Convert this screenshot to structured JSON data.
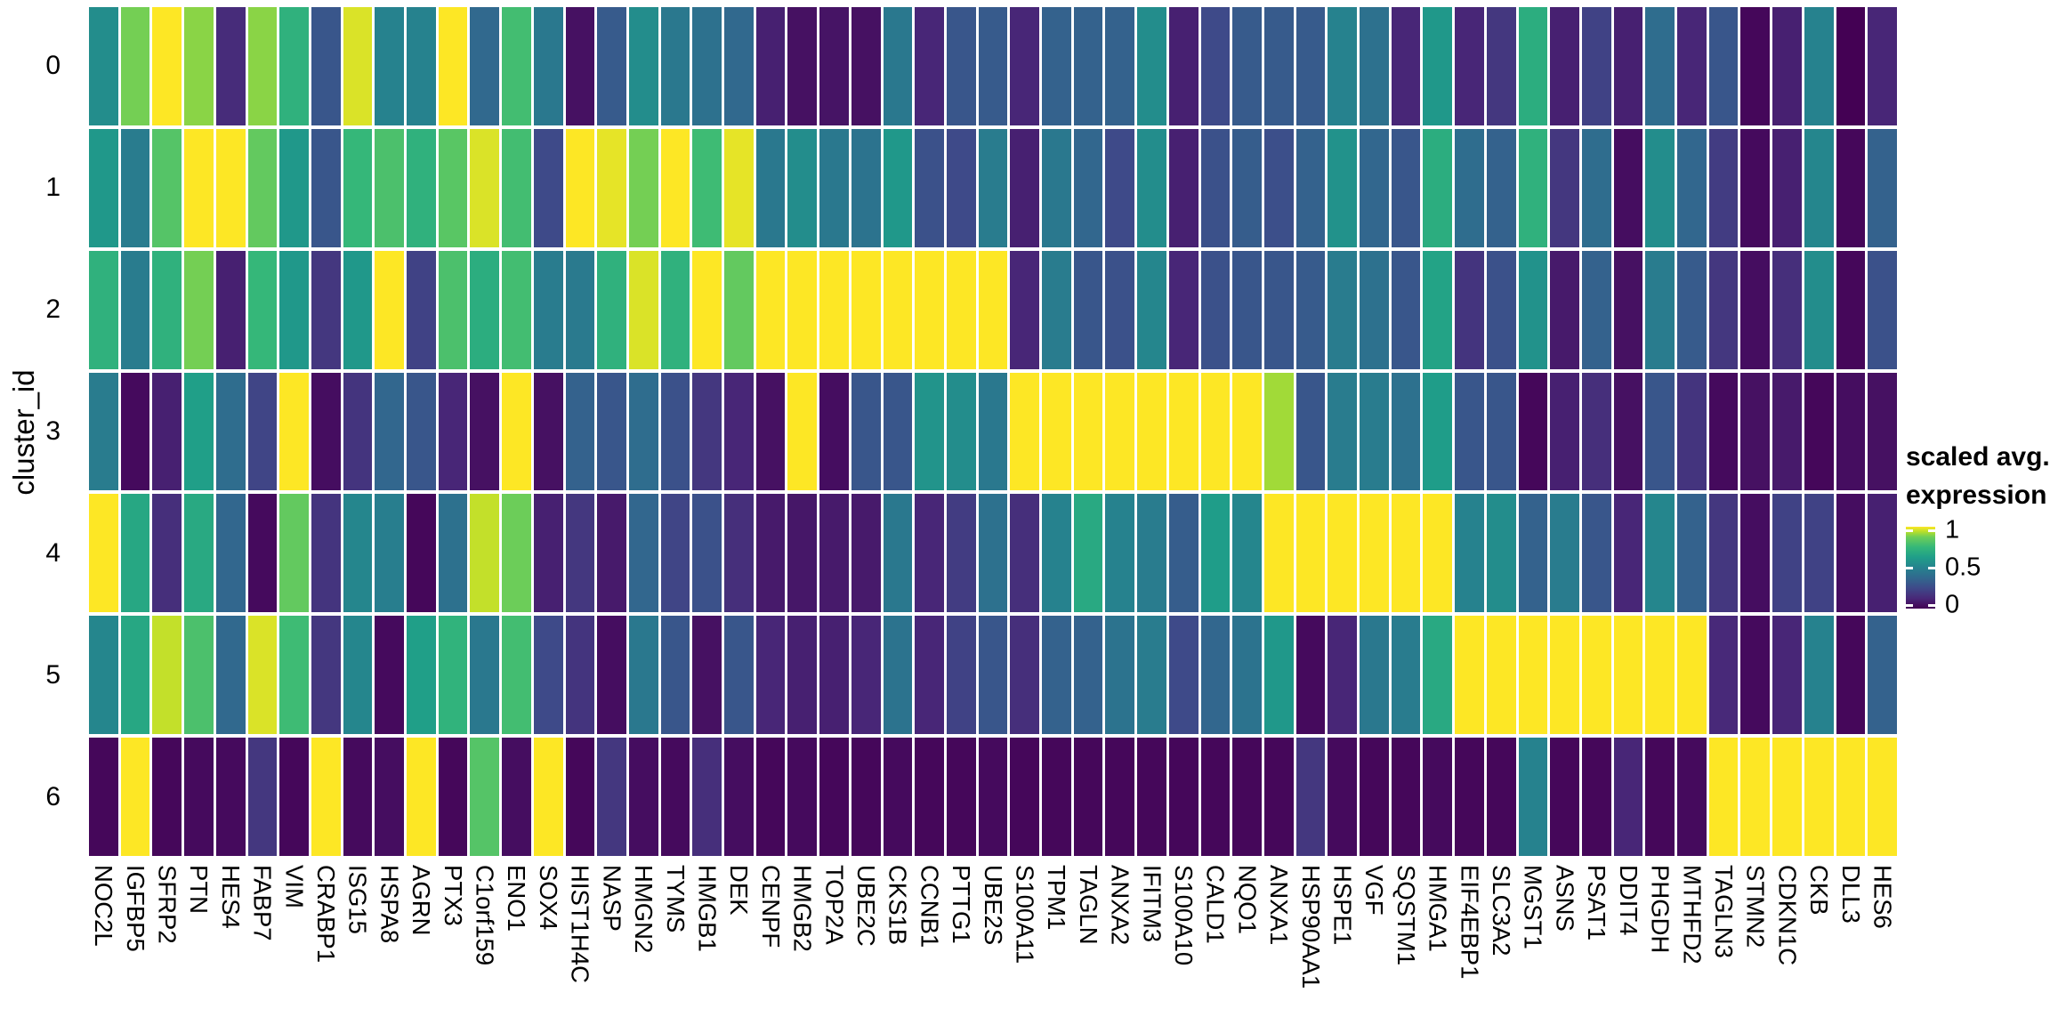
{
  "figure": {
    "y_axis_title": "cluster_id",
    "background": "#ffffff",
    "grid_color": "#ffffff",
    "legend": {
      "title_line1": "scaled avg.",
      "title_line2": "expression",
      "ticks": [
        {
          "label": "1",
          "t": 1
        },
        {
          "label": "0.5",
          "t": 0.5
        },
        {
          "label": "0",
          "t": 0
        }
      ]
    }
  },
  "chart_data": {
    "type": "heatmap",
    "title": "",
    "xlabel": "",
    "ylabel": "cluster_id",
    "colormap": "viridis",
    "legend_position": "right",
    "value_scale": {
      "min": 0,
      "max": 1,
      "label": "scaled avg. expression"
    },
    "genes": [
      "NOC2L",
      "IGFBP5",
      "SFRP2",
      "PTN",
      "HES4",
      "FABP7",
      "VIM",
      "CRABP1",
      "ISG15",
      "HSPA8",
      "AGRN",
      "PTX3",
      "C1orf159",
      "ENO1",
      "SOX4",
      "HIST1H4C",
      "NASP",
      "HMGN2",
      "TYMS",
      "HMGB1",
      "DEK",
      "CENPF",
      "HMGB2",
      "TOP2A",
      "UBE2C",
      "CKS1B",
      "CCNB1",
      "PTTG1",
      "UBE2S",
      "S100A11",
      "TPM1",
      "TAGLN",
      "ANXA2",
      "IFITM3",
      "S100A10",
      "CALD1",
      "NQO1",
      "ANXA1",
      "HSP90AA1",
      "HSPE1",
      "VGF",
      "SQSTM1",
      "HMGA1",
      "EIF4EBP1",
      "SLC3A2",
      "MGST1",
      "ASNS",
      "PSAT1",
      "DDIT4",
      "PHGDH",
      "MTHFD2",
      "TAGLN3",
      "STMN2",
      "CDKN1C",
      "CKB",
      "DLL3",
      "HES6"
    ],
    "clusters": [
      "0",
      "1",
      "2",
      "3",
      "4",
      "5",
      "6"
    ],
    "values": [
      [
        0.55,
        0.88,
        1,
        0.9,
        0.14,
        0.9,
        0.72,
        0.3,
        0.97,
        0.5,
        0.5,
        1,
        0.38,
        0.78,
        0.45,
        0.05,
        0.32,
        0.55,
        0.45,
        0.42,
        0.38,
        0.1,
        0.05,
        0.06,
        0.05,
        0.45,
        0.12,
        0.3,
        0.32,
        0.12,
        0.35,
        0.35,
        0.35,
        0.55,
        0.1,
        0.25,
        0.32,
        0.32,
        0.32,
        0.5,
        0.42,
        0.12,
        0.6,
        0.12,
        0.18,
        0.7,
        0.1,
        0.22,
        0.1,
        0.4,
        0.12,
        0.3,
        0.02,
        0.1,
        0.5,
        0,
        0.12
      ],
      [
        0.6,
        0.47,
        0.82,
        1,
        1,
        0.85,
        0.6,
        0.3,
        0.75,
        0.8,
        0.72,
        0.83,
        0.97,
        0.78,
        0.25,
        1,
        0.98,
        0.88,
        1,
        0.77,
        0.98,
        0.45,
        0.55,
        0.45,
        0.43,
        0.6,
        0.28,
        0.25,
        0.47,
        0.1,
        0.45,
        0.37,
        0.25,
        0.55,
        0.1,
        0.28,
        0.33,
        0.27,
        0.35,
        0.57,
        0.37,
        0.3,
        0.7,
        0.4,
        0.35,
        0.72,
        0.18,
        0.4,
        0.04,
        0.55,
        0.37,
        0.2,
        0.03,
        0.1,
        0.52,
        0.02,
        0.35
      ],
      [
        0.72,
        0.47,
        0.72,
        0.88,
        0.1,
        0.75,
        0.6,
        0.18,
        0.6,
        1,
        0.22,
        0.8,
        0.7,
        0.78,
        0.47,
        0.46,
        0.72,
        0.97,
        0.72,
        1,
        0.85,
        1,
        1,
        1,
        1,
        1,
        1,
        1,
        1,
        0.12,
        0.47,
        0.3,
        0.28,
        0.52,
        0.12,
        0.28,
        0.3,
        0.3,
        0.32,
        0.47,
        0.42,
        0.3,
        0.65,
        0.17,
        0.28,
        0.57,
        0.08,
        0.35,
        0.05,
        0.47,
        0.32,
        0.18,
        0.04,
        0.15,
        0.55,
        0.02,
        0.28
      ],
      [
        0.47,
        0.03,
        0.1,
        0.63,
        0.4,
        0.23,
        1,
        0.04,
        0.17,
        0.37,
        0.3,
        0.12,
        0.05,
        1,
        0.05,
        0.35,
        0.3,
        0.4,
        0.28,
        0.18,
        0.12,
        0.05,
        1,
        0.04,
        0.3,
        0.3,
        0.58,
        0.55,
        0.45,
        1,
        1,
        1,
        1,
        1,
        1,
        1,
        1,
        0.92,
        0.3,
        0.47,
        0.47,
        0.42,
        0.62,
        0.3,
        0.3,
        0.02,
        0.1,
        0.15,
        0.05,
        0.3,
        0.17,
        0.03,
        0.05,
        0.08,
        0.02,
        0.04,
        0.05
      ],
      [
        1,
        0.67,
        0.15,
        0.68,
        0.37,
        0.03,
        0.85,
        0.17,
        0.52,
        0.48,
        0.02,
        0.42,
        0.95,
        0.87,
        0.1,
        0.18,
        0.08,
        0.37,
        0.23,
        0.28,
        0.15,
        0.08,
        0.07,
        0.08,
        0.08,
        0.45,
        0.12,
        0.2,
        0.42,
        0.15,
        0.5,
        0.68,
        0.5,
        0.47,
        0.33,
        0.62,
        0.52,
        1,
        1,
        1,
        1,
        1,
        1,
        0.5,
        0.55,
        0.35,
        0.47,
        0.3,
        0.12,
        0.52,
        0.35,
        0.18,
        0.04,
        0.22,
        0.22,
        0.04,
        0.1
      ],
      [
        0.52,
        0.67,
        0.95,
        0.8,
        0.38,
        0.97,
        0.77,
        0.18,
        0.52,
        0.03,
        0.63,
        0.73,
        0.45,
        0.78,
        0.25,
        0.17,
        0.04,
        0.45,
        0.3,
        0.05,
        0.3,
        0.12,
        0.1,
        0.1,
        0.12,
        0.43,
        0.12,
        0.22,
        0.3,
        0.15,
        0.35,
        0.35,
        0.43,
        0.47,
        0.25,
        0.37,
        0.43,
        0.6,
        0.03,
        0.12,
        0.45,
        0.47,
        0.68,
        1,
        1,
        1,
        1,
        1,
        1,
        1,
        1,
        0.13,
        0.03,
        0.12,
        0.5,
        0.02,
        0.35
      ],
      [
        0.02,
        1,
        0.02,
        0.03,
        0.03,
        0.18,
        0.02,
        1,
        0.03,
        0.04,
        1,
        0.02,
        0.82,
        0.04,
        1,
        0.02,
        0.18,
        0.04,
        0.03,
        0.15,
        0.04,
        0.02,
        0.03,
        0.02,
        0.02,
        0.03,
        0.02,
        0.02,
        0.03,
        0.02,
        0.02,
        0.02,
        0.02,
        0.02,
        0.02,
        0.02,
        0.02,
        0.02,
        0.18,
        0.03,
        0.02,
        0.02,
        0.03,
        0.02,
        0.02,
        0.5,
        0.02,
        0.02,
        0.12,
        0.02,
        0.03,
        1,
        1,
        1,
        1,
        1,
        1
      ]
    ]
  }
}
